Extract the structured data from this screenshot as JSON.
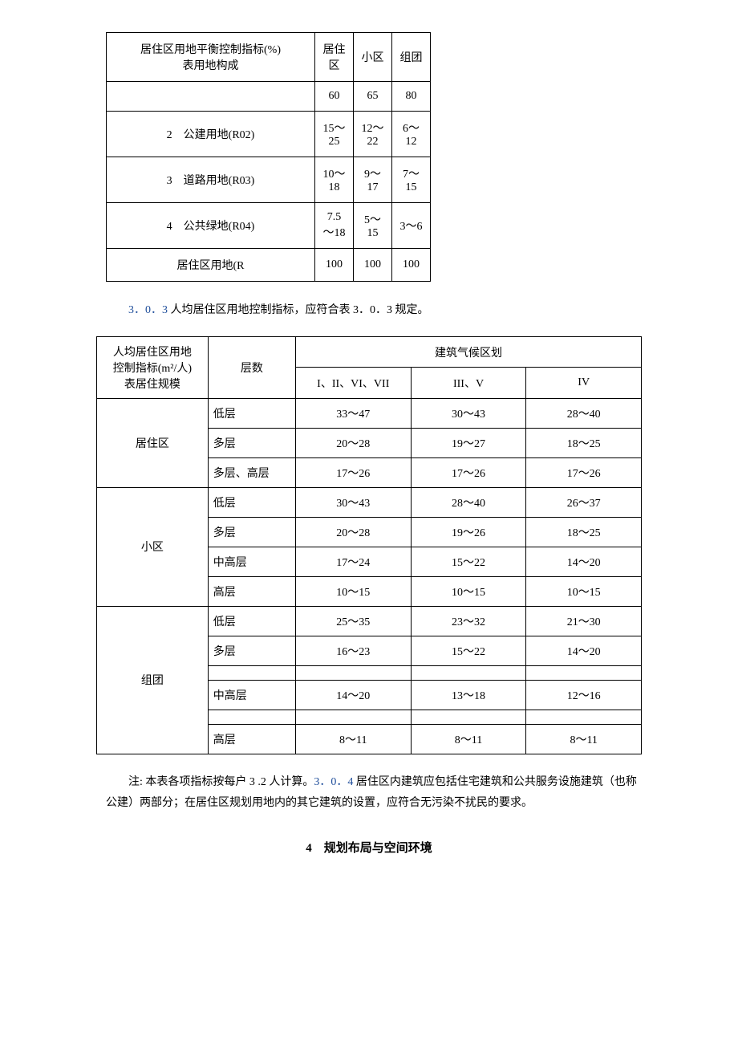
{
  "table1": {
    "header": {
      "title_line1": "居住区用地平衡控制指标(%)",
      "title_line2": "表用地构成",
      "col1": "居住区",
      "col2": "小区",
      "col3": "组团"
    },
    "rows": [
      {
        "label": "",
        "c1": "60",
        "c2": "65",
        "c3": "80"
      },
      {
        "label": "2　公建用地(R02)",
        "c1": "15～25",
        "c2": "12～22",
        "c3": "6～12"
      },
      {
        "label": "3　道路用地(R03)",
        "c1": "10～18",
        "c2": "9～17",
        "c3": "7～15"
      },
      {
        "label": "4　公共绿地(R04)",
        "c1": "7.5～18",
        "c2": "5～15",
        "c3": "3～6"
      },
      {
        "label": "居住区用地(R",
        "c1": "100",
        "c2": "100",
        "c3": "100"
      }
    ]
  },
  "para1": {
    "num": "3．0．3",
    "text": " 人均居住区用地控制指标，应符合表 3．0．3 规定。"
  },
  "table2": {
    "header": {
      "left_line1": "人均居住区用地",
      "left_line2": "控制指标(m²/人)",
      "left_line3": "表居住规模",
      "floors": "层数",
      "climate_title": "建筑气候区划",
      "z1": "I、II、VI、VII",
      "z2": "III、V",
      "z3": "IV"
    },
    "groups": [
      {
        "name": "居住区",
        "rows": [
          {
            "f": "低层",
            "z1": "33～47",
            "z2": "30～43",
            "z3": "28～40"
          },
          {
            "f": "多层",
            "z1": "20～28",
            "z2": "19～27",
            "z3": "18～25"
          },
          {
            "f": "多层、高层",
            "z1": "17～26",
            "z2": "17～26",
            "z3": "17～26"
          }
        ]
      },
      {
        "name": "小区",
        "rows": [
          {
            "f": "低层",
            "z1": "30～43",
            "z2": "28～40",
            "z3": "26～37"
          },
          {
            "f": "多层",
            "z1": "20～28",
            "z2": "19～26",
            "z3": "18～25"
          },
          {
            "f": "中高层",
            "z1": "17～24",
            "z2": "15～22",
            "z3": "14～20"
          },
          {
            "f": "高层",
            "z1": "10～15",
            "z2": "10～15",
            "z3": "10～15"
          }
        ]
      },
      {
        "name": "组团",
        "rows": [
          {
            "f": "低层",
            "z1": "25～35",
            "z2": "23～32",
            "z3": "21～30"
          },
          {
            "f": "多层",
            "z1": "16～23",
            "z2": "15～22",
            "z3": "14～20"
          },
          {
            "f": "",
            "z1": "",
            "z2": "",
            "z3": "",
            "empty": true
          },
          {
            "f": "中高层",
            "z1": "14～20",
            "z2": "13～18",
            "z3": "12～16"
          },
          {
            "f": "",
            "z1": "",
            "z2": "",
            "z3": "",
            "empty": true
          },
          {
            "f": "高层",
            "z1": "8～11",
            "z2": "8～11",
            "z3": "8～11"
          }
        ]
      }
    ]
  },
  "note": {
    "lead": "注: 本表各项指标按每户 3 .2 人计算。",
    "num": "3．0．4",
    "rest": " 居住区内建筑应包括住宅建筑和公共服务设施建筑（也称公建）两部分；在居住区规划用地内的其它建筑的设置，应符合无污染不扰民的要求。"
  },
  "heading": "4　规划布局与空间环境",
  "colors": {
    "clause": "#1f4e9b",
    "text": "#000000",
    "border": "#000000",
    "bg": "#ffffff"
  }
}
